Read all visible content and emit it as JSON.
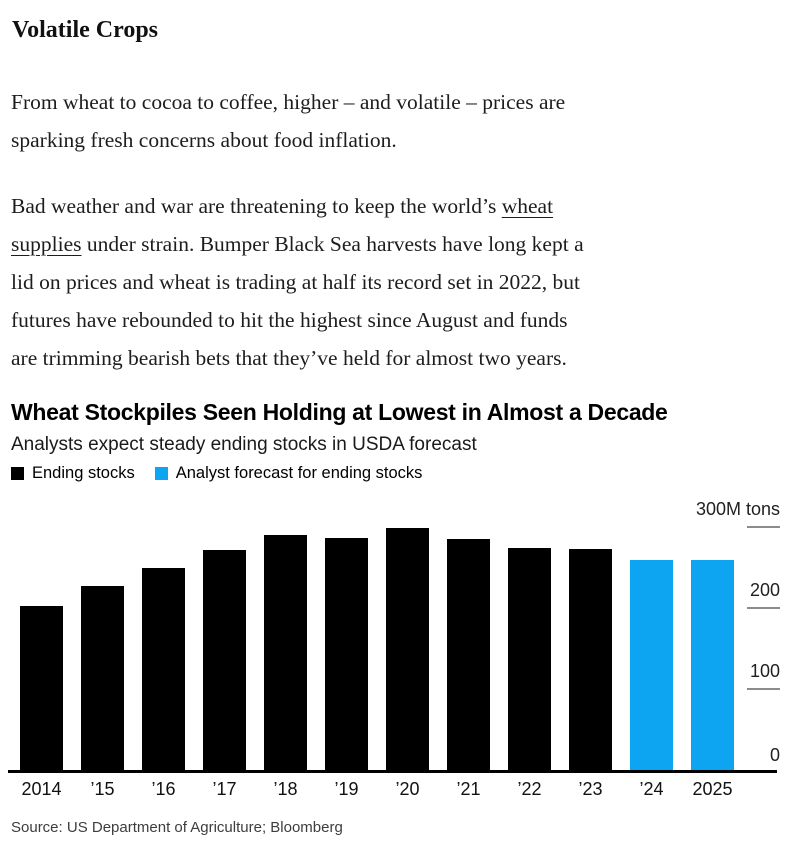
{
  "article": {
    "title": "Volatile Crops",
    "paragraph1": "From wheat to cocoa to coffee, higher – and volatile – prices are\nsparking fresh concerns about food inflation.",
    "paragraph2_segments": [
      {
        "text": "Bad weather and war are threatening to keep the world’s ",
        "link": false
      },
      {
        "text": "wheat\nsupplies",
        "link": true
      },
      {
        "text": " under strain. Bumper Black Sea harvests have long kept a\nlid on prices and wheat is trading at half its record set in 2022, but\nfutures have rebounded to hit the highest since August and funds\nare trimming bearish bets that they’ve held for almost two years.",
        "link": false
      }
    ]
  },
  "chart": {
    "headline": "Wheat Stockpiles Seen Holding at Lowest in Almost a Decade",
    "subtitle": "Analysts expect steady ending stocks in USDA forecast",
    "legend": [
      {
        "label": "Ending stocks",
        "color": "#000000"
      },
      {
        "label": "Analyst forecast for ending stocks",
        "color": "#0da5f2"
      }
    ],
    "source": "Source: US Department of Agriculture; Bloomberg"
  },
  "chart_data": {
    "type": "bar",
    "title": "Wheat Stockpiles Seen Holding at Lowest in Almost a Decade",
    "subtitle": "Analysts expect steady ending stocks in USDA forecast",
    "categories": [
      "2014",
      "’15",
      "’16",
      "’17",
      "’18",
      "’19",
      "’20",
      "’21",
      "’22",
      "’23",
      "’24",
      "2025"
    ],
    "series": [
      {
        "name": "Ending stocks",
        "color": "#000000",
        "values": [
          202,
          227,
          249,
          272,
          290,
          286,
          299,
          285,
          274,
          273,
          null,
          null
        ]
      },
      {
        "name": "Analyst forecast for ending stocks",
        "color": "#0da5f2",
        "values": [
          null,
          null,
          null,
          null,
          null,
          null,
          null,
          null,
          null,
          null,
          259,
          259
        ]
      }
    ],
    "ylabel": "M tons",
    "ylim": [
      0,
      300
    ],
    "yticks": [
      0,
      100,
      200,
      300
    ],
    "ytick_labels": [
      "0",
      "100",
      "200",
      "300M tons"
    ],
    "y_axis_side": "right",
    "grid": false,
    "legend_position": "top-left",
    "source": "Source: US Department of Agriculture; Bloomberg"
  }
}
